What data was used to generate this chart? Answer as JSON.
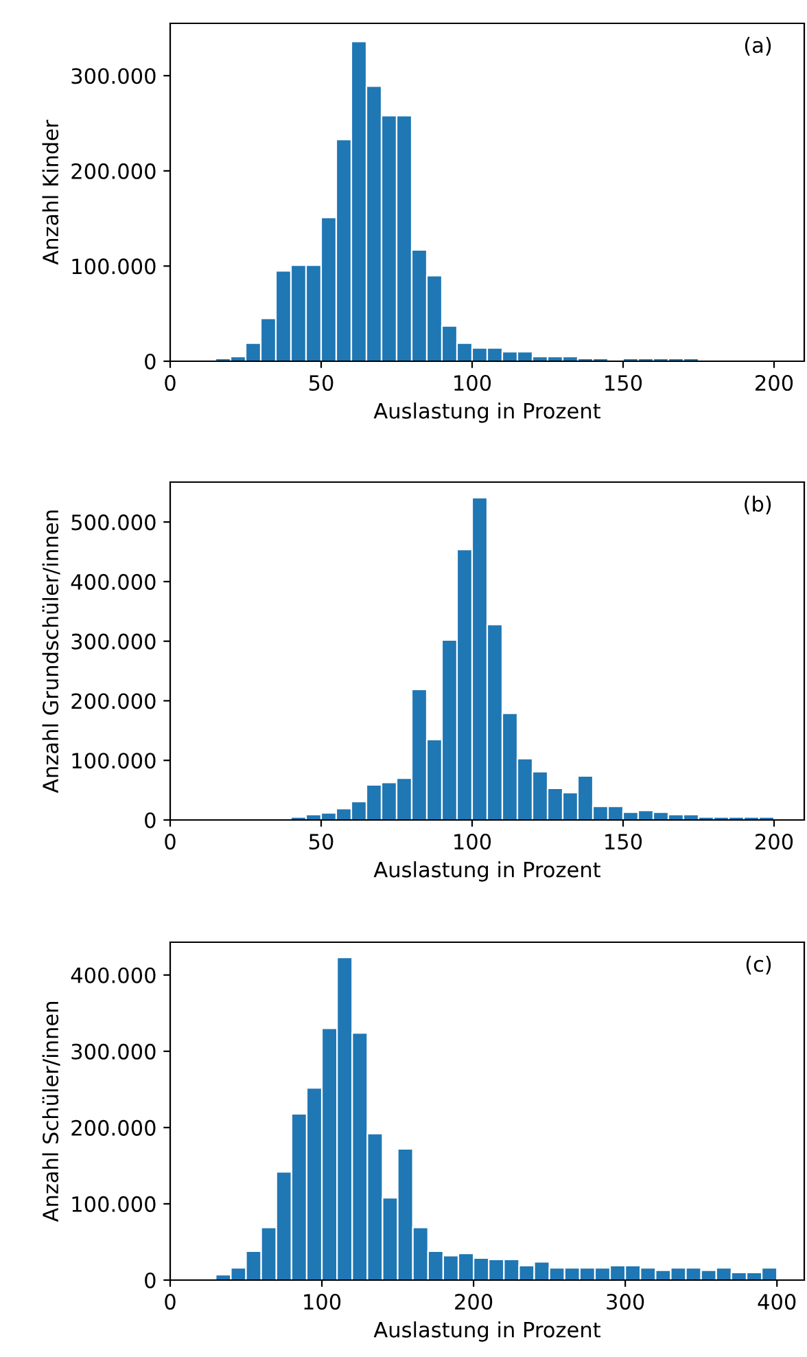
{
  "chart_data": [
    {
      "type": "histogram",
      "xlabel": "Auslastung in Prozent",
      "ylabel": "Anzahl Kinder",
      "annotations": [
        "(a)"
      ],
      "color": "#1f77b4",
      "bins": [
        15,
        20,
        25,
        30,
        35,
        40,
        45,
        50,
        55,
        60,
        65,
        70,
        75,
        80,
        85,
        90,
        95,
        100,
        105,
        110,
        115,
        120,
        125,
        130,
        135,
        140,
        145,
        150,
        155,
        160,
        165,
        170,
        175
      ],
      "values": [
        3000,
        5000,
        19000,
        45000,
        95000,
        101000,
        101000,
        151000,
        233000,
        336000,
        289000,
        258000,
        258000,
        117000,
        90000,
        37000,
        19000,
        14000,
        14000,
        10000,
        10000,
        5000,
        5000,
        5000,
        3000,
        3000,
        0,
        3000,
        3000,
        3000,
        3000,
        3000
      ],
      "xlim": [
        0,
        210
      ],
      "xticks": [
        0,
        50,
        100,
        150,
        200
      ],
      "ylim": [
        0,
        355000
      ],
      "yticks": [
        {
          "value": 0,
          "label": "0"
        },
        {
          "value": 100000,
          "label": "100.000"
        },
        {
          "value": 200000,
          "label": "200.000"
        },
        {
          "value": 300000,
          "label": "300.000"
        }
      ]
    },
    {
      "type": "histogram",
      "xlabel": "Auslastung in Prozent",
      "ylabel": "Anzahl Grundschüler/innen",
      "annotations": [
        "(b)"
      ],
      "color": "#1f77b4",
      "bins": [
        40,
        45,
        50,
        55,
        60,
        65,
        70,
        75,
        80,
        85,
        90,
        95,
        100,
        105,
        110,
        115,
        120,
        125,
        130,
        135,
        140,
        145,
        150,
        155,
        160,
        165,
        170,
        175,
        180,
        185,
        190,
        195,
        200
      ],
      "values": [
        5000,
        9000,
        12000,
        19000,
        31000,
        59000,
        63000,
        70000,
        219000,
        135000,
        302000,
        454000,
        541000,
        328000,
        179000,
        103000,
        81000,
        53000,
        46000,
        74000,
        23000,
        23000,
        13000,
        16000,
        13000,
        9000,
        9000,
        5000,
        5000,
        5000,
        5000,
        5000
      ],
      "xlim": [
        0,
        210
      ],
      "xticks": [
        0,
        50,
        100,
        150,
        200
      ],
      "ylim": [
        0,
        567000
      ],
      "yticks": [
        {
          "value": 0,
          "label": "0"
        },
        {
          "value": 100000,
          "label": "100.000"
        },
        {
          "value": 200000,
          "label": "200.000"
        },
        {
          "value": 300000,
          "label": "300.000"
        },
        {
          "value": 400000,
          "label": "400.000"
        },
        {
          "value": 500000,
          "label": "500.000"
        }
      ]
    },
    {
      "type": "histogram",
      "xlabel": "Auslastung in Prozent",
      "ylabel": "Anzahl Schüler/innen",
      "annotations": [
        "(c)"
      ],
      "color": "#1f77b4",
      "bins": [
        30,
        40,
        50,
        60,
        70,
        80,
        90,
        100,
        110,
        120,
        130,
        140,
        150,
        160,
        170,
        180,
        190,
        200,
        210,
        220,
        230,
        240,
        250,
        260,
        270,
        280,
        290,
        300,
        310,
        320,
        330,
        340,
        350,
        360,
        370,
        380,
        390,
        400
      ],
      "values": [
        7000,
        16000,
        38000,
        69000,
        142000,
        218000,
        252000,
        330000,
        423000,
        324000,
        192000,
        108000,
        172000,
        69000,
        38000,
        32000,
        35000,
        29000,
        27000,
        27000,
        19000,
        24000,
        16000,
        16000,
        16000,
        16000,
        19000,
        19000,
        16000,
        13000,
        16000,
        16000,
        13000,
        16000,
        10000,
        10000,
        16000
      ],
      "xlim": [
        0,
        418
      ],
      "xticks": [
        0,
        100,
        200,
        300,
        400
      ],
      "ylim": [
        0,
        443000
      ],
      "yticks": [
        {
          "value": 0,
          "label": "0"
        },
        {
          "value": 100000,
          "label": "100.000"
        },
        {
          "value": 200000,
          "label": "200.000"
        },
        {
          "value": 300000,
          "label": "300.000"
        },
        {
          "value": 400000,
          "label": "400.000"
        }
      ]
    }
  ]
}
